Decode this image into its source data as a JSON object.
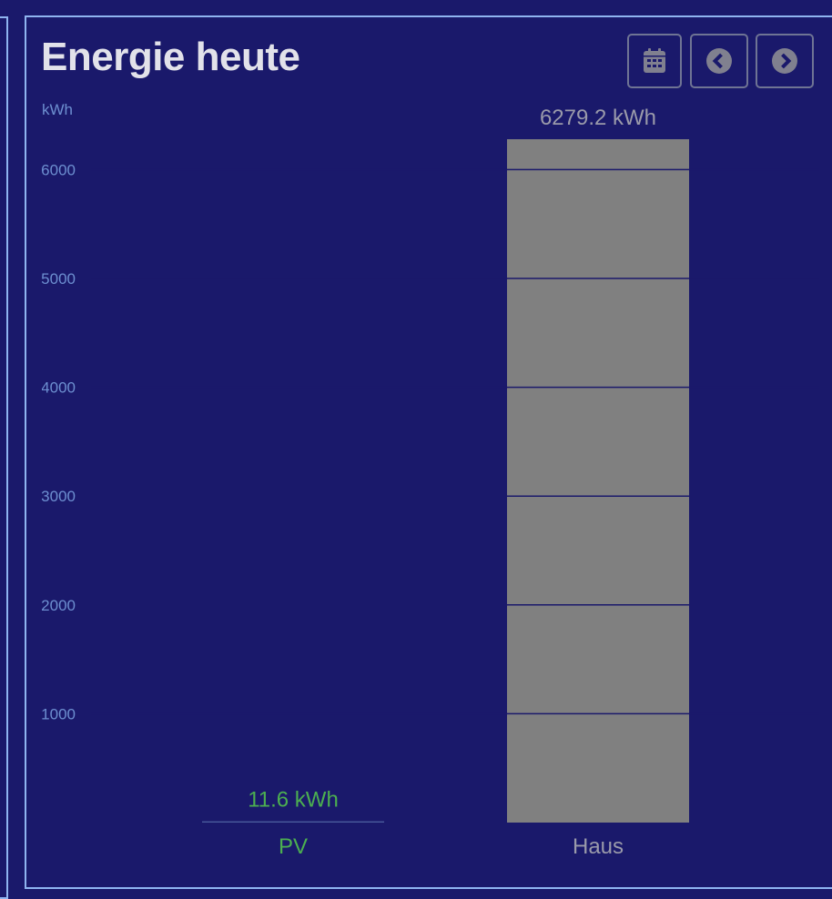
{
  "card": {
    "title": "Energie heute",
    "buttons": [
      {
        "name": "calendar-button",
        "icon": "calendar-icon"
      },
      {
        "name": "previous-button",
        "icon": "chevron-left-circle-icon"
      },
      {
        "name": "next-button",
        "icon": "chevron-right-circle-icon"
      }
    ]
  },
  "colors": {
    "background": "#1a196b",
    "border": "#8fb4f0",
    "pv": "#4caf50",
    "haus": "#808080",
    "axis_text": "#6d8fd0"
  },
  "chart_data": {
    "type": "bar",
    "title": "Energie heute",
    "ylabel": "kWh",
    "ylim": [
      0,
      6279.2
    ],
    "yticks": [
      1000,
      2000,
      3000,
      4000,
      5000,
      6000
    ],
    "ytick_labels": [
      "1000",
      "2000",
      "3000",
      "4000",
      "5000",
      "6000"
    ],
    "grid": true,
    "categories": [
      "PV",
      "Haus"
    ],
    "values": [
      11.6,
      6279.2
    ],
    "data_labels": [
      "11.6 kWh",
      "6279.2 kWh"
    ],
    "bar_colors": [
      "#4caf50",
      "#808080"
    ],
    "label_colors": [
      "#4caf50",
      "#9a9aaa"
    ]
  }
}
